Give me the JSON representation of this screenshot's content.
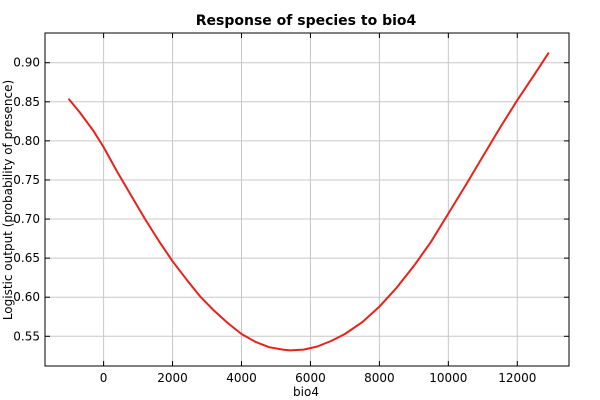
{
  "chart_data": {
    "type": "line",
    "title": "Response of species to bio4",
    "xlabel": "bio4",
    "ylabel": "Logistic output (probability of presence)",
    "xlim": [
      -1700,
      13500
    ],
    "ylim": [
      0.512,
      0.938
    ],
    "x_ticks": [
      0,
      2000,
      4000,
      6000,
      8000,
      10000,
      12000
    ],
    "y_ticks": [
      0.55,
      0.6,
      0.65,
      0.7,
      0.75,
      0.8,
      0.85,
      0.9
    ],
    "x_tick_labels": [
      "0",
      "2000",
      "4000",
      "6000",
      "8000",
      "10000",
      "12000"
    ],
    "y_tick_labels": [
      "0.55",
      "0.60",
      "0.65",
      "0.70",
      "0.75",
      "0.80",
      "0.85",
      "0.90"
    ],
    "grid": true,
    "series": [
      {
        "color": "#e8221b",
        "x": [
          -1000,
          -700,
          -300,
          0,
          400,
          800,
          1200,
          1600,
          2000,
          2400,
          2800,
          3200,
          3600,
          4000,
          4400,
          4800,
          5200,
          5400,
          5800,
          6200,
          6600,
          7000,
          7500,
          8000,
          8500,
          9000,
          9500,
          10000,
          10500,
          11000,
          11500,
          12000,
          12500,
          12900
        ],
        "y": [
          0.853,
          0.837,
          0.813,
          0.792,
          0.76,
          0.73,
          0.7,
          0.672,
          0.646,
          0.623,
          0.601,
          0.583,
          0.567,
          0.553,
          0.543,
          0.536,
          0.533,
          0.532,
          0.533,
          0.537,
          0.544,
          0.553,
          0.568,
          0.588,
          0.612,
          0.64,
          0.671,
          0.707,
          0.743,
          0.78,
          0.817,
          0.852,
          0.885,
          0.912
        ]
      }
    ]
  }
}
